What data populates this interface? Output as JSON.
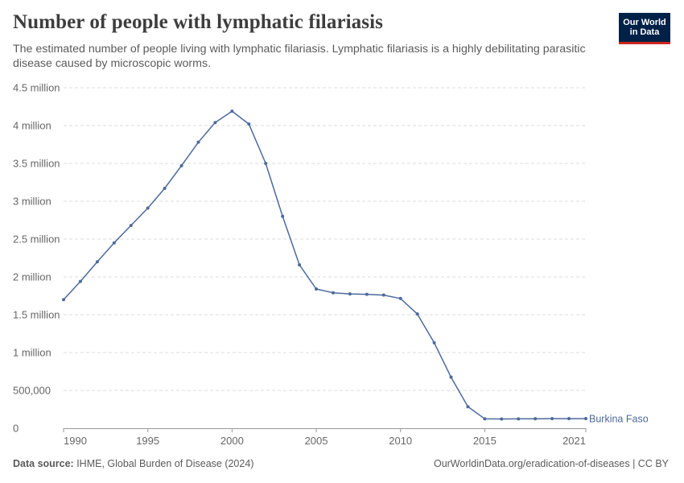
{
  "header": {
    "title": "Number of people with lymphatic filariasis",
    "subtitle": "The estimated number of people living with lymphatic filariasis. Lymphatic filariasis is a highly debilitating parasitic disease caused by microscopic worms."
  },
  "logo": {
    "line1": "Our World",
    "line2": "in Data"
  },
  "footer": {
    "source_label": "Data source:",
    "source_text": " IHME, Global Burden of Disease (2024)",
    "right_text": "OurWorldinData.org/eradication-of-diseases | CC BY"
  },
  "colors": {
    "series": "#4c6a9c",
    "grid": "#dddddd",
    "axis": "#666666",
    "logo_bg": "#002147",
    "logo_accent": "#ce261e"
  },
  "chart_data": {
    "type": "line",
    "title": "Number of people with lymphatic filariasis",
    "xlabel": "",
    "ylabel": "",
    "xlim": [
      1990,
      2021
    ],
    "ylim": [
      0,
      4500000
    ],
    "x_ticks": [
      1990,
      1995,
      2000,
      2005,
      2010,
      2015,
      2021
    ],
    "y_ticks": [
      {
        "value": 0,
        "label": "0"
      },
      {
        "value": 500000,
        "label": "500,000"
      },
      {
        "value": 1000000,
        "label": "1 million"
      },
      {
        "value": 1500000,
        "label": "1.5 million"
      },
      {
        "value": 2000000,
        "label": "2 million"
      },
      {
        "value": 2500000,
        "label": "2.5 million"
      },
      {
        "value": 3000000,
        "label": "3 million"
      },
      {
        "value": 3500000,
        "label": "3.5 million"
      },
      {
        "value": 4000000,
        "label": "4 million"
      },
      {
        "value": 4500000,
        "label": "4.5 million"
      }
    ],
    "grid": "horizontal-dashed",
    "series": [
      {
        "name": "Burkina Faso",
        "color": "#4c6a9c",
        "x": [
          1990,
          1991,
          1992,
          1993,
          1994,
          1995,
          1996,
          1997,
          1998,
          1999,
          2000,
          2001,
          2002,
          2003,
          2004,
          2005,
          2006,
          2007,
          2008,
          2009,
          2010,
          2011,
          2012,
          2013,
          2014,
          2015,
          2016,
          2017,
          2018,
          2019,
          2020,
          2021
        ],
        "values": [
          1700000,
          1940000,
          2200000,
          2450000,
          2680000,
          2910000,
          3170000,
          3470000,
          3780000,
          4040000,
          4190000,
          4020000,
          3500000,
          2800000,
          2160000,
          1840000,
          1790000,
          1775000,
          1770000,
          1760000,
          1715000,
          1510000,
          1130000,
          675000,
          285000,
          125000,
          122000,
          124000,
          126000,
          128000,
          127000,
          128000
        ]
      }
    ]
  }
}
